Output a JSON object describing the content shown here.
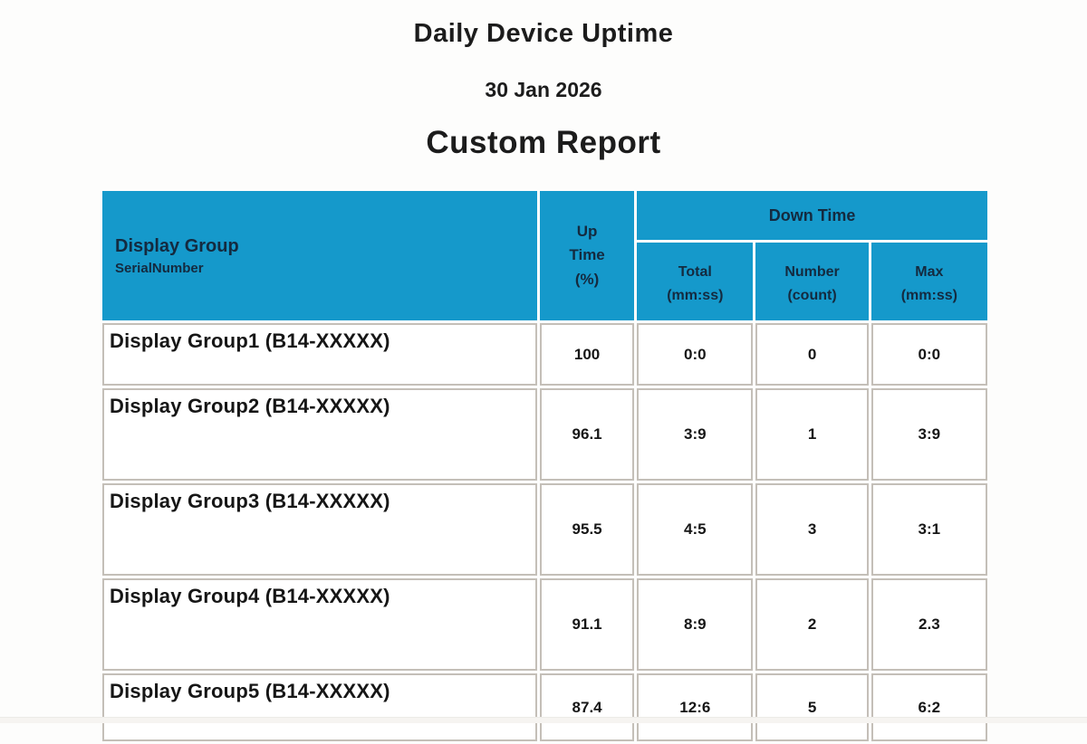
{
  "report": {
    "title": "Daily Device Uptime",
    "date": "30 Jan 2026",
    "subtitle": "Custom Report"
  },
  "table": {
    "headers": {
      "display_group": "Display Group",
      "serial_number": "SerialNumber",
      "up_time_lines": [
        "Up",
        "Time",
        "(%)"
      ],
      "down_time": "Down Time",
      "sub": [
        {
          "label": "Total",
          "unit": "(mm:ss)"
        },
        {
          "label": "Number",
          "unit": "(count)"
        },
        {
          "label": "Max",
          "unit": "(mm:ss)"
        }
      ]
    },
    "rows": [
      {
        "group": "Display Group1 (B14-XXXXX)",
        "up_time": "100",
        "total": "0:0",
        "number": "0",
        "max": "0:0"
      },
      {
        "group": "Display Group2 (B14-XXXXX)",
        "up_time": "96.1",
        "total": "3:9",
        "number": "1",
        "max": "3:9"
      },
      {
        "group": "Display Group3 (B14-XXXXX)",
        "up_time": "95.5",
        "total": "4:5",
        "number": "3",
        "max": "3:1"
      },
      {
        "group": "Display Group4 (B14-XXXXX)",
        "up_time": "91.1",
        "total": "8:9",
        "number": "2",
        "max": "2.3"
      },
      {
        "group": "Display Group5 (B14-XXXXX)",
        "up_time": "87.4",
        "total": "12:6",
        "number": "5",
        "max": "6:2"
      }
    ]
  },
  "colors": {
    "header_bg": "#1599cb",
    "header_text": "#142a3f",
    "cell_border": "#c4bfb8"
  }
}
